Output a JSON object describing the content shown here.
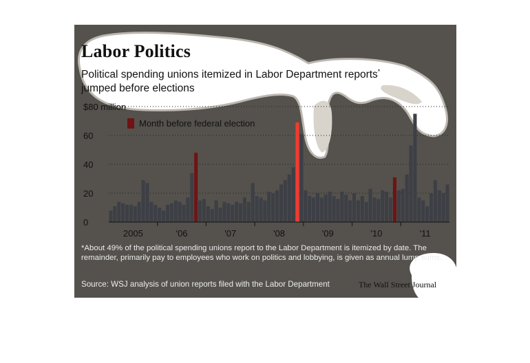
{
  "title": "Labor Politics",
  "subtitle": "Political spending unions itemized in Labor Department reports",
  "subtitle_mark": "*",
  "subtitle_line2": "jumped before elections",
  "legend_label": "Month before federal election",
  "footnote": "*About 49% of the political spending unions report to the Labor Department is itemized by date. The remainder, primarily pay to employees who work on politics and lobbying, is given as annual lump sums.",
  "source": "Source: WSJ analysis of union reports filed with the Labor Department",
  "credit": "The Wall Street Journal",
  "colors": {
    "background": "#55524d",
    "bars": "#3d3f46",
    "election_bars": "#6e1414",
    "highlight_bar": "#f23b2f",
    "blob": "#ffffff"
  },
  "chart_data": {
    "type": "bar",
    "title": "Labor Politics",
    "ylabel": "",
    "ylim": [
      0,
      80
    ],
    "y_ticks": [
      {
        "value": 0,
        "label": "0"
      },
      {
        "value": 20,
        "label": "20"
      },
      {
        "value": 40,
        "label": "40"
      },
      {
        "value": 60,
        "label": "60"
      },
      {
        "value": 80,
        "label": "$80 million"
      }
    ],
    "grid": "horizontal dotted",
    "x_labels": [
      "2005",
      "'06",
      "'07",
      "'08",
      "'09",
      "'10",
      "'11"
    ],
    "start_month": "2005-01",
    "values": [
      8,
      11,
      14,
      13,
      12,
      12,
      11,
      14,
      29,
      27,
      14,
      12,
      10,
      8,
      12,
      13,
      15,
      14,
      12,
      17,
      34,
      48,
      15,
      16,
      11,
      9,
      15,
      10,
      14,
      13,
      12,
      14,
      13,
      17,
      14,
      27,
      18,
      17,
      15,
      21,
      20,
      22,
      26,
      29,
      33,
      38,
      69,
      61,
      22,
      18,
      17,
      20,
      17,
      19,
      21,
      18,
      16,
      21,
      19,
      15,
      20,
      15,
      18,
      14,
      23,
      17,
      16,
      22,
      21,
      17,
      31,
      22,
      23,
      33,
      53,
      75,
      17,
      15,
      11,
      20,
      29,
      22,
      20,
      26
    ],
    "election_month_indices": [
      21,
      46,
      70
    ],
    "highlight_index": 46,
    "legend_entry": "Month before federal election"
  }
}
